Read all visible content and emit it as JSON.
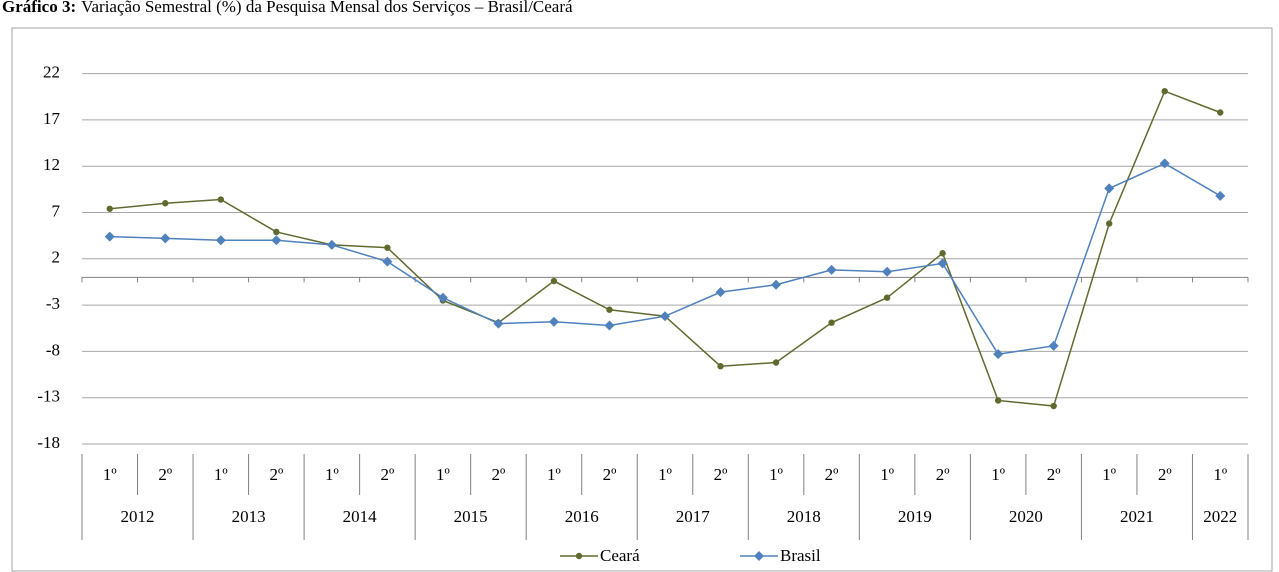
{
  "chart_data": {
    "type": "line",
    "title_label": "Gráfico 3:",
    "title": "Variação Semestral (%) da Pesquisa Mensal dos Serviços – Brasil/Ceará",
    "categories": [
      "1º",
      "2º",
      "1º",
      "2º",
      "1º",
      "2º",
      "1º",
      "2º",
      "1º",
      "2º",
      "1º",
      "2º",
      "1º",
      "2º",
      "1º",
      "2º",
      "1º",
      "2º",
      "1º",
      "2º",
      "1º"
    ],
    "years": [
      "2012",
      "2013",
      "2014",
      "2015",
      "2016",
      "2017",
      "2018",
      "2019",
      "2020",
      "2021",
      "2022"
    ],
    "series": [
      {
        "name": "Ceará",
        "color": "#5f6b2e",
        "marker": "circle",
        "values": [
          7.4,
          8.0,
          8.4,
          4.9,
          3.5,
          3.2,
          -2.5,
          -4.9,
          -0.4,
          -3.5,
          -4.2,
          -9.6,
          -9.2,
          -4.9,
          -2.2,
          2.6,
          -13.3,
          -13.9,
          5.8,
          20.1,
          17.8
        ]
      },
      {
        "name": "Brasil",
        "color": "#4f81bd",
        "marker": "diamond",
        "values": [
          4.4,
          4.2,
          4.0,
          4.0,
          3.5,
          1.7,
          -2.2,
          -5.0,
          -4.8,
          -5.2,
          -4.2,
          -1.6,
          -0.8,
          0.8,
          0.6,
          1.5,
          -8.3,
          -7.4,
          9.6,
          12.3,
          8.8
        ]
      }
    ],
    "ylim": [
      -18,
      25
    ],
    "yticks": [
      -18,
      -13,
      -8,
      -3,
      2,
      7,
      12,
      17,
      22
    ],
    "grid": true,
    "legend": "bottom"
  }
}
